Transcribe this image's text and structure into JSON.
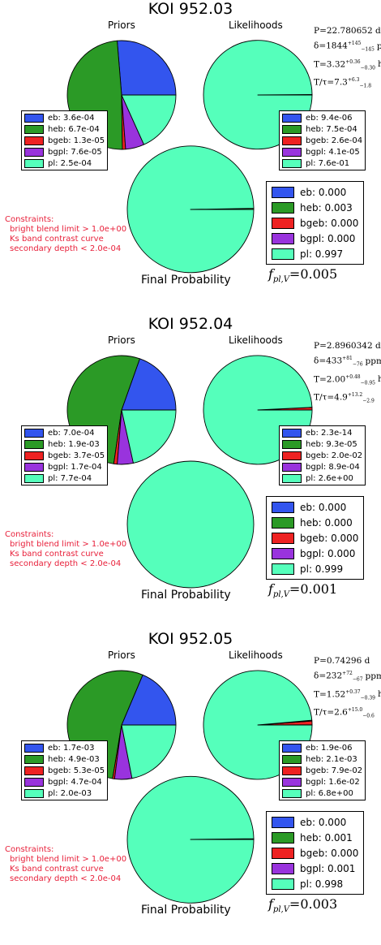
{
  "colors": {
    "eb": "#3355ee",
    "heb": "#2b9a26",
    "bgeb": "#ee2222",
    "bgpl": "#9933dd",
    "pl": "#55ffbb"
  },
  "chart_data": [
    {
      "type": "pie",
      "title": "KOI 952.03",
      "params": {
        "P": "P=22.780652 d",
        "delta": "δ=1844",
        "delta_up": "+145",
        "delta_dn": "−145",
        "delta_unit": "ppm",
        "T": "T=3.32",
        "T_up": "+0.36",
        "T_dn": "−0.30",
        "T_unit": "h",
        "Ttau": "T/τ=7.3",
        "Ttau_up": "+6.3",
        "Ttau_dn": "−1.8"
      },
      "priors": {
        "label": "Priors",
        "categories": [
          "eb",
          "heb",
          "bgeb",
          "bgpl",
          "pl"
        ],
        "values": [
          0.00036,
          0.00067,
          1.3e-05,
          7.6e-05,
          0.00025
        ],
        "legend": [
          "eb: 3.6e-04",
          "heb: 6.7e-04",
          "bgeb: 1.3e-05",
          "bgpl: 7.6e-05",
          "pl: 2.5e-04"
        ]
      },
      "likelihoods": {
        "label": "Likelihoods",
        "categories": [
          "eb",
          "heb",
          "bgeb",
          "bgpl",
          "pl"
        ],
        "values": [
          9.4e-06,
          0.00075,
          0.00026,
          4.1e-05,
          0.76
        ],
        "legend": [
          "eb: 9.4e-06",
          "heb: 7.5e-04",
          "bgeb: 2.6e-04",
          "bgpl: 4.1e-05",
          "pl: 7.6e-01"
        ]
      },
      "final": {
        "label": "Final Probability",
        "categories": [
          "eb",
          "heb",
          "bgeb",
          "bgpl",
          "pl"
        ],
        "values": [
          0.0,
          0.003,
          0.0,
          0.0,
          0.997
        ],
        "legend": [
          "eb: 0.000",
          "heb: 0.003",
          "bgeb: 0.000",
          "bgpl: 0.000",
          "pl: 0.997"
        ]
      },
      "constraints": [
        "Constraints:",
        "bright blend limit > 1.0e+00",
        "Ks band contrast curve",
        "secondary depth < 2.0e-04"
      ],
      "fpl": {
        "prefix": "f",
        "sub": "pl,V",
        "value": "=0.005"
      }
    },
    {
      "type": "pie",
      "title": "KOI 952.04",
      "params": {
        "P": "P=2.8960342 d",
        "delta": "δ=433",
        "delta_up": "+81",
        "delta_dn": "−76",
        "delta_unit": "ppm",
        "T": "T=2.00",
        "T_up": "+0.48",
        "T_dn": "−0.95",
        "T_unit": "h",
        "Ttau": "T/τ=4.9",
        "Ttau_up": "+13.2",
        "Ttau_dn": "−2.9"
      },
      "priors": {
        "label": "Priors",
        "categories": [
          "eb",
          "heb",
          "bgeb",
          "bgpl",
          "pl"
        ],
        "values": [
          0.0007,
          0.0019,
          3.7e-05,
          0.00017,
          0.00077
        ],
        "legend": [
          "eb: 7.0e-04",
          "heb: 1.9e-03",
          "bgeb: 3.7e-05",
          "bgpl: 1.7e-04",
          "pl: 7.7e-04"
        ]
      },
      "likelihoods": {
        "label": "Likelihoods",
        "categories": [
          "eb",
          "heb",
          "bgeb",
          "bgpl",
          "pl"
        ],
        "values": [
          2.3e-14,
          9.3e-05,
          0.02,
          0.00089,
          2.6
        ],
        "legend": [
          "eb: 2.3e-14",
          "heb: 9.3e-05",
          "bgeb: 2.0e-02",
          "bgpl: 8.9e-04",
          "pl: 2.6e+00"
        ]
      },
      "final": {
        "label": "Final Probability",
        "categories": [
          "eb",
          "heb",
          "bgeb",
          "bgpl",
          "pl"
        ],
        "values": [
          0.0,
          0.0,
          0.0,
          0.0,
          0.999
        ],
        "legend": [
          "eb: 0.000",
          "heb: 0.000",
          "bgeb: 0.000",
          "bgpl: 0.000",
          "pl: 0.999"
        ]
      },
      "constraints": [
        "Constraints:",
        "bright blend limit > 1.0e+00",
        "Ks band contrast curve",
        "secondary depth < 2.0e-04"
      ],
      "fpl": {
        "prefix": "f",
        "sub": "pl,V",
        "value": "=0.001"
      }
    },
    {
      "type": "pie",
      "title": "KOI 952.05",
      "params": {
        "P": "P=0.74296 d",
        "delta": "δ=232",
        "delta_up": "+72",
        "delta_dn": "−67",
        "delta_unit": "ppm",
        "T": "T=1.52",
        "T_up": "+0.37",
        "T_dn": "−0.39",
        "T_unit": "h",
        "Ttau": "T/τ=2.6",
        "Ttau_up": "+15.0",
        "Ttau_dn": "−0.6"
      },
      "priors": {
        "label": "Priors",
        "categories": [
          "eb",
          "heb",
          "bgeb",
          "bgpl",
          "pl"
        ],
        "values": [
          0.0017,
          0.0049,
          5.3e-05,
          0.00047,
          0.002
        ],
        "legend": [
          "eb: 1.7e-03",
          "heb: 4.9e-03",
          "bgeb: 5.3e-05",
          "bgpl: 4.7e-04",
          "pl: 2.0e-03"
        ]
      },
      "likelihoods": {
        "label": "Likelihoods",
        "categories": [
          "eb",
          "heb",
          "bgeb",
          "bgpl",
          "pl"
        ],
        "values": [
          1.9e-06,
          0.0021,
          0.079,
          0.016,
          6.8
        ],
        "legend": [
          "eb: 1.9e-06",
          "heb: 2.1e-03",
          "bgeb: 7.9e-02",
          "bgpl: 1.6e-02",
          "pl: 6.8e+00"
        ]
      },
      "final": {
        "label": "Final Probability",
        "categories": [
          "eb",
          "heb",
          "bgeb",
          "bgpl",
          "pl"
        ],
        "values": [
          0.0,
          0.001,
          0.0,
          0.001,
          0.998
        ],
        "legend": [
          "eb: 0.000",
          "heb: 0.001",
          "bgeb: 0.000",
          "bgpl: 0.001",
          "pl: 0.998"
        ]
      },
      "constraints": [
        "Constraints:",
        "bright blend limit > 1.0e+00",
        "Ks band contrast curve",
        "secondary depth < 2.0e-04"
      ],
      "fpl": {
        "prefix": "f",
        "sub": "pl,V",
        "value": "=0.003"
      }
    }
  ]
}
